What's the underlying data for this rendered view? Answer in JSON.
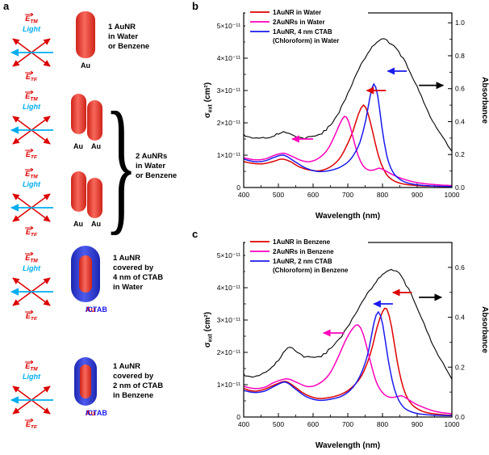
{
  "panels": {
    "a": "a",
    "b": "b",
    "c": "c"
  },
  "schematic": {
    "brace": "}",
    "arrow_labels": {
      "e": "E",
      "tm": "TM",
      "te": "TE",
      "light": "Light"
    },
    "colors": {
      "gold_rod": "#e8372a",
      "ctab_shell": "#2a35d9",
      "field_arrows": "#dd0000",
      "light_arrow": "#00aeef"
    },
    "items": [
      {
        "id": "one-aunr",
        "rod_label": "Au",
        "caption": [
          "1 AuNR",
          "in Water",
          "or Benzene"
        ]
      },
      {
        "id": "two-aunrs",
        "rod_label": "Au",
        "caption": [
          "2 AuNRs",
          "in Water",
          "or Benzene"
        ]
      },
      {
        "id": "aunr-4nm-ctab",
        "rod_label_au": "Au",
        "rod_label_coat": "/CTAB",
        "caption": [
          "1 AuNR",
          "covered by",
          "4 nm of CTAB",
          "in Water"
        ]
      },
      {
        "id": "aunr-2nm-ctab",
        "rod_label_au": "Au",
        "rod_label_coat": "/CTAB",
        "caption": [
          "1 AuNR",
          "covered by",
          "2 nm of CTAB",
          "in Benzene"
        ]
      }
    ]
  },
  "chart_data": [
    {
      "type": "line",
      "panel": "b",
      "xlabel": "Wavelength (nm)",
      "ylabel_left": {
        "pre": "σ",
        "sub": "ext",
        "post": " (cm²)"
      },
      "ylabel_right": "Absorbance",
      "x_range": [
        400,
        1000
      ],
      "x_ticks": [
        400,
        500,
        600,
        700,
        800,
        900,
        1000
      ],
      "y_left_range": [
        0,
        5.4e-11
      ],
      "y_left_ticks": [
        {
          "v": 0,
          "label": "0"
        },
        {
          "v": 1e-11,
          "label": "1×10⁻¹¹"
        },
        {
          "v": 2e-11,
          "label": "2×10⁻¹¹"
        },
        {
          "v": 3e-11,
          "label": "3×10⁻¹¹"
        },
        {
          "v": 4e-11,
          "label": "4×10⁻¹¹"
        },
        {
          "v": 5e-11,
          "label": "5×10⁻¹¹"
        }
      ],
      "y_right_range": [
        0,
        1.06
      ],
      "y_right_ticks": [
        {
          "v": 0.0,
          "label": "0.0"
        },
        {
          "v": 0.2,
          "label": "0.2"
        },
        {
          "v": 0.4,
          "label": "0.4"
        },
        {
          "v": 0.6,
          "label": "0.6"
        },
        {
          "v": 0.8,
          "label": "0.8"
        },
        {
          "v": 1.0,
          "label": "1.0"
        }
      ],
      "legend": [
        {
          "label": "1AuNR in Water",
          "color": "#dd0000"
        },
        {
          "label": "2AuNRs in Water",
          "color": "#ff00bb"
        },
        {
          "label": "1AuNR, 4 nm CTAB\n(Chloroform) in Water",
          "color": "#1a1aee"
        }
      ],
      "series": [
        {
          "name": "1AuNR in Water",
          "color": "#dd0000",
          "axis": "left",
          "x": [
            400,
            430,
            460,
            490,
            510,
            535,
            560,
            590,
            620,
            650,
            675,
            695,
            715,
            730,
            745,
            758,
            772,
            788,
            805,
            825,
            855,
            900,
            950,
            1000
          ],
          "y": [
            8e-12,
            7.4e-12,
            7.4e-12,
            8.2e-12,
            8.8e-12,
            8e-12,
            6.4e-12,
            5.4e-12,
            5.2e-12,
            6.4e-12,
            8.8e-12,
            1.25e-11,
            1.75e-11,
            2.25e-11,
            2.55e-11,
            2.3e-11,
            1.7e-11,
            1e-11,
            5.2e-12,
            2.6e-12,
            1.2e-12,
            6e-13,
            4e-13,
            3e-13
          ]
        },
        {
          "name": "2AuNRs in Water",
          "color": "#ff00bb",
          "axis": "left",
          "x": [
            400,
            430,
            460,
            490,
            515,
            540,
            565,
            590,
            615,
            640,
            660,
            675,
            690,
            702,
            715,
            730,
            745,
            760,
            775,
            790,
            805,
            825,
            855,
            900,
            950,
            1000
          ],
          "y": [
            9.2e-12,
            8.6e-12,
            8.8e-12,
            1e-11,
            1.06e-11,
            9.6e-12,
            8.4e-12,
            8e-12,
            9e-12,
            1.15e-11,
            1.55e-11,
            1.92e-11,
            2.2e-11,
            2.05e-11,
            1.55e-11,
            9.8e-12,
            6.6e-12,
            5.4e-12,
            5.4e-12,
            6e-12,
            5.4e-12,
            4.2e-12,
            2.8e-12,
            1.5e-12,
            9e-13,
            6e-13
          ]
        },
        {
          "name": "1AuNR, 4 nm CTAB (Chloroform) in Water",
          "color": "#1a1aee",
          "axis": "left",
          "x": [
            400,
            430,
            460,
            490,
            515,
            545,
            575,
            610,
            645,
            680,
            710,
            735,
            752,
            765,
            775,
            786,
            798,
            812,
            830,
            855,
            890,
            940,
            1000
          ],
          "y": [
            8.8e-12,
            8e-12,
            8.2e-12,
            9.4e-12,
            1e-11,
            8.2e-12,
            6.2e-12,
            5e-12,
            5.2e-12,
            6.4e-12,
            9e-12,
            1.4e-11,
            2.1e-11,
            2.85e-11,
            3.2e-11,
            2.85e-11,
            1.9e-11,
            1e-11,
            4.8e-12,
            2.2e-12,
            1e-12,
            5e-13,
            3e-13
          ]
        },
        {
          "name": "Absorbance",
          "color": "#000000",
          "axis": "right",
          "noisy": true,
          "x": [
            400,
            425,
            450,
            475,
            500,
            515,
            530,
            550,
            575,
            600,
            625,
            650,
            675,
            700,
            725,
            750,
            770,
            790,
            805,
            820,
            840,
            860,
            880,
            900,
            925,
            950,
            975,
            1000
          ],
          "y": [
            0.32,
            0.3,
            0.3,
            0.3,
            0.33,
            0.34,
            0.33,
            0.31,
            0.3,
            0.31,
            0.33,
            0.38,
            0.46,
            0.57,
            0.69,
            0.79,
            0.85,
            0.89,
            0.9,
            0.88,
            0.84,
            0.78,
            0.7,
            0.61,
            0.49,
            0.38,
            0.3,
            0.22
          ]
        }
      ],
      "arrows": [
        {
          "color": "#ff00bb",
          "dir": "left",
          "y_axis": "left",
          "y": 1.5e-11,
          "x_head": 540,
          "x_tail": 600
        },
        {
          "color": "#dd0000",
          "dir": "left",
          "y_axis": "left",
          "y": 3e-11,
          "x_head": 755,
          "x_tail": 810
        },
        {
          "color": "#1a1aee",
          "dir": "left",
          "y_axis": "left",
          "y": 3.6e-11,
          "x_head": 815,
          "x_tail": 870
        },
        {
          "color": "#000000",
          "dir": "right",
          "y_axis": "right",
          "y": 0.62,
          "x_head": 975,
          "x_tail": 905
        }
      ]
    },
    {
      "type": "line",
      "panel": "c",
      "xlabel": "Wavelength (nm)",
      "ylabel_left": {
        "pre": "σ",
        "sub": "ext",
        "post": " (cm²)"
      },
      "ylabel_right": "Absorbance",
      "x_range": [
        400,
        1000
      ],
      "x_ticks": [
        400,
        500,
        600,
        700,
        800,
        900,
        1000
      ],
      "y_left_range": [
        0,
        5.4e-11
      ],
      "y_left_ticks": [
        {
          "v": 0,
          "label": "0"
        },
        {
          "v": 1e-11,
          "label": "1×10⁻¹¹"
        },
        {
          "v": 2e-11,
          "label": "2×10⁻¹¹"
        },
        {
          "v": 3e-11,
          "label": "3×10⁻¹¹"
        },
        {
          "v": 4e-11,
          "label": "4×10⁻¹¹"
        },
        {
          "v": 5e-11,
          "label": "5×10⁻¹¹"
        }
      ],
      "y_right_range": [
        0,
        0.7
      ],
      "y_right_ticks": [
        {
          "v": 0.0,
          "label": "0.0"
        },
        {
          "v": 0.2,
          "label": "0.2"
        },
        {
          "v": 0.4,
          "label": "0.4"
        },
        {
          "v": 0.6,
          "label": "0.6"
        }
      ],
      "legend": [
        {
          "label": "1AuNR in Benzene",
          "color": "#dd0000"
        },
        {
          "label": "2AuNRs in Benzene",
          "color": "#ff00bb"
        },
        {
          "label": "1AuNR, 2 nm CTAB\n(Chloroform) in Benzene",
          "color": "#1a1aee"
        }
      ],
      "series": [
        {
          "name": "1AuNR in Benzene",
          "color": "#dd0000",
          "axis": "left",
          "x": [
            400,
            430,
            460,
            490,
            520,
            545,
            575,
            610,
            645,
            680,
            710,
            740,
            765,
            785,
            800,
            812,
            826,
            842,
            860,
            882,
            915,
            955,
            1000
          ],
          "y": [
            8.8e-12,
            8e-12,
            8.6e-12,
            1e-11,
            1.1e-11,
            9.5e-12,
            7.2e-12,
            5.8e-12,
            6e-12,
            7e-12,
            9e-12,
            1.28e-11,
            1.95e-11,
            2.8e-11,
            3.25e-11,
            3.35e-11,
            2.8e-11,
            1.75e-11,
            9e-12,
            4.2e-12,
            1.8e-12,
            9e-13,
            5e-13
          ]
        },
        {
          "name": "2AuNRs in Benzene",
          "color": "#ff00bb",
          "axis": "left",
          "x": [
            400,
            430,
            460,
            490,
            525,
            555,
            585,
            615,
            645,
            670,
            695,
            715,
            730,
            745,
            762,
            780,
            798,
            818,
            838,
            855,
            872,
            900,
            950,
            1000
          ],
          "y": [
            9.5e-12,
            8.8e-12,
            9.2e-12,
            1.08e-11,
            1.18e-11,
            1.06e-11,
            9.4e-12,
            1.02e-11,
            1.3e-11,
            1.8e-11,
            2.4e-11,
            2.75e-11,
            2.85e-11,
            2.55e-11,
            1.85e-11,
            1.15e-11,
            7.8e-12,
            6.2e-12,
            6.2e-12,
            6.6e-12,
            5.6e-12,
            3.8e-12,
            1.8e-12,
            1e-12
          ]
        },
        {
          "name": "1AuNR, 2 nm CTAB (Chloroform) in Benzene",
          "color": "#1a1aee",
          "axis": "left",
          "x": [
            400,
            430,
            460,
            490,
            520,
            550,
            580,
            615,
            650,
            685,
            715,
            740,
            760,
            775,
            788,
            801,
            816,
            834,
            856,
            886,
            930,
            1000
          ],
          "y": [
            8.2e-12,
            7.6e-12,
            8e-12,
            9.6e-12,
            1.08e-11,
            8.6e-12,
            6.3e-12,
            5.2e-12,
            5.5e-12,
            6.6e-12,
            9.2e-12,
            1.38e-11,
            2.05e-11,
            2.9e-11,
            3.25e-11,
            2.85e-11,
            1.8e-11,
            8.8e-12,
            3.6e-12,
            1.5e-12,
            7e-13,
            4e-13
          ]
        },
        {
          "name": "Absorbance",
          "color": "#000000",
          "axis": "right",
          "noisy": true,
          "x": [
            400,
            425,
            450,
            475,
            500,
            520,
            535,
            555,
            580,
            605,
            630,
            660,
            690,
            720,
            750,
            775,
            800,
            818,
            832,
            848,
            868,
            890,
            912,
            935,
            960,
            1000
          ],
          "y": [
            0.17,
            0.16,
            0.17,
            0.19,
            0.23,
            0.27,
            0.28,
            0.26,
            0.24,
            0.24,
            0.25,
            0.29,
            0.34,
            0.41,
            0.48,
            0.53,
            0.57,
            0.585,
            0.59,
            0.575,
            0.53,
            0.47,
            0.4,
            0.32,
            0.25,
            0.15
          ]
        }
      ],
      "arrows": [
        {
          "color": "#ff00bb",
          "dir": "left",
          "y_axis": "left",
          "y": 2.6e-11,
          "x_head": 630,
          "x_tail": 690
        },
        {
          "color": "#1a1aee",
          "dir": "left",
          "y_axis": "left",
          "y": 3.5e-11,
          "x_head": 775,
          "x_tail": 830
        },
        {
          "color": "#dd0000",
          "dir": "left",
          "y_axis": "left",
          "y": 3.85e-11,
          "x_head": 830,
          "x_tail": 885
        },
        {
          "color": "#000000",
          "dir": "right",
          "y_axis": "right",
          "y": 0.48,
          "x_head": 970,
          "x_tail": 905
        }
      ]
    }
  ]
}
